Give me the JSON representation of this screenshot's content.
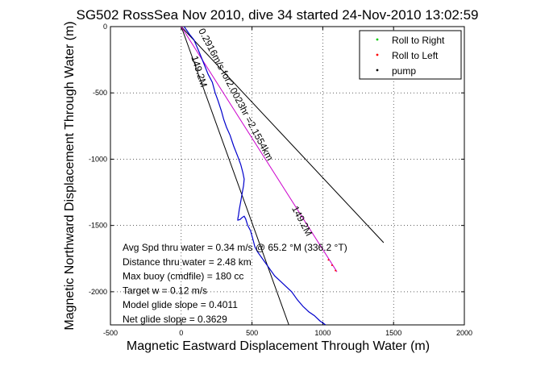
{
  "chart_data": {
    "type": "line",
    "title": "SG502 RossSea Nov 2010, dive 34 started 24-Nov-2010 13:02:59",
    "xlabel": "Magnetic Eastward Displacement Through Water (m)",
    "ylabel": "Magnetic Northward Displacement Through Water (m)",
    "xlim": [
      -500,
      2000
    ],
    "ylim": [
      -2250,
      0
    ],
    "x_ticks": [
      -500,
      0,
      500,
      1000,
      1500,
      2000
    ],
    "y_ticks": [
      0,
      -500,
      -1000,
      -1500,
      -2000
    ],
    "grid": true,
    "legend_position": "top-right",
    "legend": [
      {
        "label": "Roll to Right",
        "color": "#00cc00"
      },
      {
        "label": "Roll to Left",
        "color": "#ff0000"
      },
      {
        "label": "pump",
        "color": "#000000"
      }
    ],
    "track": {
      "color": "#0000cc",
      "x": [
        20,
        40,
        60,
        90,
        110,
        130,
        160,
        190,
        220,
        240,
        260,
        285,
        300,
        320,
        345,
        370,
        400,
        420,
        435,
        445,
        440,
        430,
        420,
        410,
        405,
        400,
        400,
        415,
        430,
        445,
        455,
        470,
        490,
        500,
        510,
        520,
        540,
        580,
        620,
        660,
        700,
        740,
        780,
        820,
        860,
        900,
        940,
        980,
        1020
      ],
      "y": [
        0,
        -30,
        -60,
        -100,
        -150,
        -200,
        -280,
        -360,
        -420,
        -500,
        -560,
        -640,
        -700,
        -760,
        -820,
        -900,
        -980,
        -1040,
        -1100,
        -1150,
        -1200,
        -1260,
        -1320,
        -1380,
        -1420,
        -1450,
        -1460,
        -1455,
        -1440,
        -1430,
        -1450,
        -1500,
        -1540,
        -1580,
        -1620,
        -1660,
        -1700,
        -1760,
        -1820,
        -1880,
        -1920,
        -1960,
        -2000,
        -2060,
        -2110,
        -2150,
        -2180,
        -2220,
        -2250
      ]
    },
    "heading_line": {
      "color": "#cc00cc",
      "x": [
        0,
        1100
      ],
      "y": [
        0,
        -1850
      ]
    },
    "cone_lines": [
      {
        "x": [
          0,
          1430
        ],
        "y": [
          0,
          -1630
        ]
      },
      {
        "x": [
          0,
          760
        ],
        "y": [
          0,
          -2250
        ]
      }
    ],
    "red_marks": {
      "color": "#ff0000",
      "x": [
        1040,
        1065,
        1090
      ],
      "y": [
        -1760,
        -1800,
        -1840
      ]
    },
    "annotations": [
      {
        "text": "0.2916m/s for2.0023hr =2.1554km",
        "x": 120,
        "y": -30,
        "rotation_deg": 62
      },
      {
        "text": "149.2M",
        "x": 70,
        "y": -230,
        "rotation_deg": 72
      },
      {
        "text": "149.2M",
        "x": 780,
        "y": -1370,
        "rotation_deg": 62
      }
    ],
    "stats": [
      "Avg Spd thru water =  0.34 m/s @  65.2   °M (336.2 °T)",
      "Distance thru water =  2.48 km",
      "Max buoy (cmdfile) = 180 cc",
      "Target w = 0.12 m/s",
      "Model glide slope = 0.4011",
      "Net glide slope = 0.3629"
    ]
  }
}
